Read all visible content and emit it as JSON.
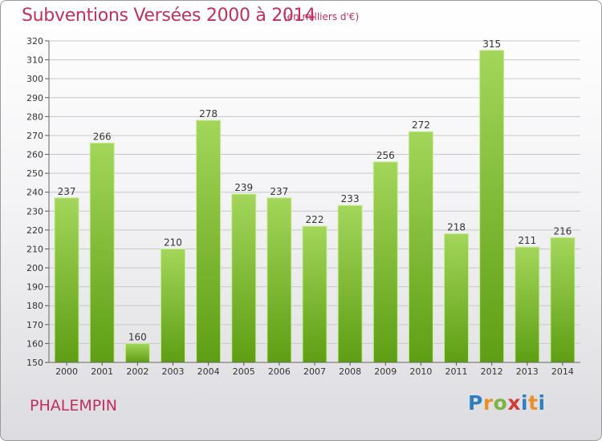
{
  "header": {
    "title": "Subventions Versées 2000 à 2014",
    "subtitle": "(en milliers d'€)"
  },
  "footer": {
    "commune": "PHALEMPIN",
    "logo_text": "Proxiti"
  },
  "colors": {
    "title": "#c0305a",
    "bar_light": "#a3d65a",
    "bar_dark": "#5e9e14",
    "grid": "#c8c8c8"
  },
  "chart_data": {
    "type": "bar",
    "title": "Subventions Versées 2000 à 2014",
    "subtitle": "(en milliers d'€)",
    "categories": [
      "2000",
      "2001",
      "2002",
      "2003",
      "2004",
      "2005",
      "2006",
      "2007",
      "2008",
      "2009",
      "2010",
      "2011",
      "2012",
      "2013",
      "2014"
    ],
    "values": [
      237,
      266,
      160,
      210,
      278,
      239,
      237,
      222,
      233,
      256,
      272,
      218,
      315,
      211,
      216
    ],
    "ylim": [
      150,
      320
    ],
    "ytick_step": 10,
    "grid": true,
    "legend": "none"
  }
}
